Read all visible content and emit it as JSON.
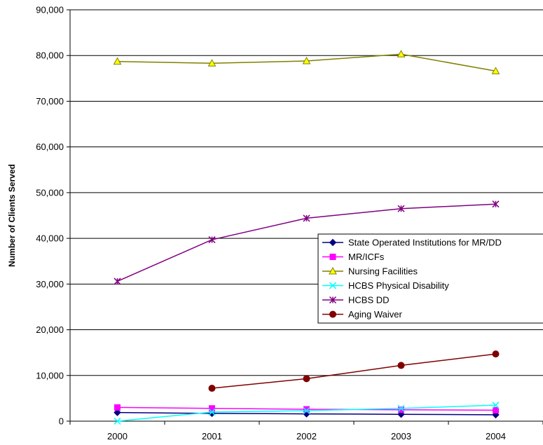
{
  "chart_data": {
    "type": "line",
    "title": "",
    "xlabel": "",
    "ylabel": "Number of Clients Served",
    "ylim": [
      0,
      90000
    ],
    "y_ticks": [
      "0",
      "10,000",
      "20,000",
      "30,000",
      "40,000",
      "50,000",
      "60,000",
      "70,000",
      "80,000",
      "90,000"
    ],
    "y_tick_values": [
      0,
      10000,
      20000,
      30000,
      40000,
      50000,
      60000,
      70000,
      80000,
      90000
    ],
    "categories": [
      "2000",
      "2001",
      "2002",
      "2003",
      "2004"
    ],
    "grid": "horizontal",
    "legend_position": "center-right",
    "series": [
      {
        "name": "State Operated Institutions for MR/DD",
        "color": "#000080",
        "marker": "diamond",
        "values": [
          1900,
          1700,
          1600,
          1500,
          1400
        ]
      },
      {
        "name": "MR/ICFs",
        "color": "#FF00FF",
        "marker": "square",
        "values": [
          3000,
          2800,
          2600,
          2500,
          2400
        ]
      },
      {
        "name": "Nursing Facilities",
        "color": "#808000",
        "marker": "triangle",
        "values": [
          78700,
          78300,
          78800,
          80300,
          76600
        ]
      },
      {
        "name": "HCBS Physical Disability",
        "color": "#00FFFF",
        "marker": "x",
        "values": [
          0,
          2000,
          2300,
          2800,
          3500
        ]
      },
      {
        "name": "HCBS DD",
        "color": "#800080",
        "marker": "star",
        "values": [
          30600,
          39700,
          44400,
          46500,
          47500
        ]
      },
      {
        "name": "Aging Waiver",
        "color": "#800000",
        "marker": "circle",
        "values": [
          null,
          7200,
          9300,
          12200,
          14700
        ]
      }
    ]
  }
}
